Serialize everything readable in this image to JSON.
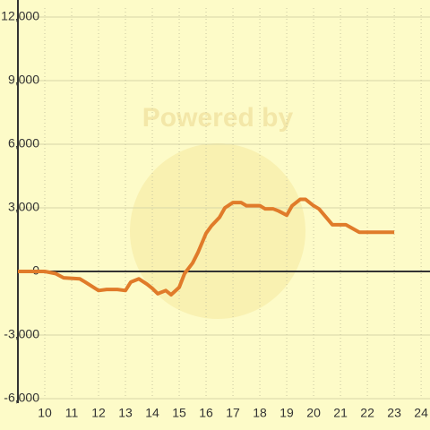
{
  "chart_data": {
    "type": "line",
    "watermark": "Powered by",
    "x": [
      9,
      10,
      10.4,
      10.7,
      11.3,
      11.5,
      12,
      12.3,
      12.7,
      13,
      13.2,
      13.5,
      13.8,
      14,
      14.2,
      14.5,
      14.7,
      15,
      15.2,
      15.5,
      15.7,
      16,
      16.2,
      16.5,
      16.7,
      17,
      17.3,
      17.5,
      18,
      18.2,
      18.5,
      18.7,
      19,
      19.2,
      19.5,
      19.7,
      20,
      20.2,
      20.5,
      20.7,
      21.2,
      21.7,
      23
    ],
    "series": [
      {
        "color": "#e07b2a",
        "values": [
          0,
          0,
          -100,
          -300,
          -350,
          -500,
          -900,
          -850,
          -850,
          -900,
          -500,
          -350,
          -600,
          -800,
          -1050,
          -900,
          -1100,
          -750,
          -100,
          400,
          900,
          1800,
          2150,
          2550,
          3000,
          3250,
          3250,
          3100,
          3100,
          2950,
          2950,
          2850,
          2650,
          3100,
          3400,
          3400,
          3100,
          2950,
          2500,
          2200,
          2200,
          1850,
          1850
        ]
      }
    ],
    "xlim": [
      9,
      24.33
    ],
    "xticks": [
      10,
      11,
      12,
      13,
      14,
      15,
      16,
      17,
      18,
      19,
      20,
      21,
      22,
      23,
      24
    ],
    "ylim": [
      -6000,
      12000
    ],
    "yticks": [
      {
        "value": -6000,
        "label": "-6,000"
      },
      {
        "value": -3000,
        "label": "-3,000"
      },
      0,
      {
        "value": 3000,
        "label": "3,000"
      },
      {
        "value": 6000,
        "label": "6,000"
      },
      {
        "value": 9000,
        "label": "9,000"
      },
      {
        "value": 12000,
        "label": "12,000"
      }
    ],
    "grid": true
  }
}
